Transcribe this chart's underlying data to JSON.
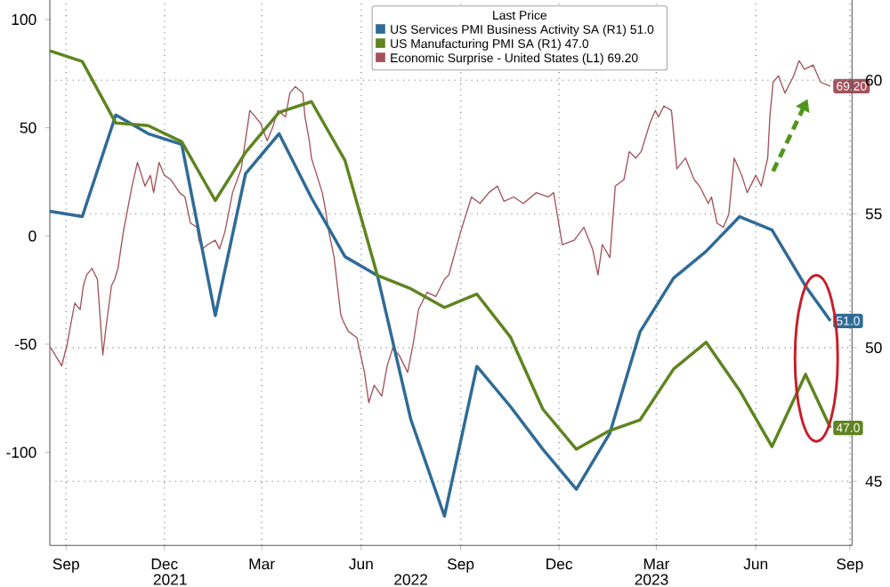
{
  "chart_data": {
    "type": "line",
    "legend_title": "Last Price",
    "legend": "top right",
    "grid": true,
    "xlim": [
      "2021-08-31",
      "2023-09-12"
    ],
    "xticks": [
      {
        "value": "2021-09-15",
        "label": "Sep"
      },
      {
        "value": "2021-12-15",
        "label": "Dec"
      },
      {
        "value": "2022-03-15",
        "label": "Mar"
      },
      {
        "value": "2022-06-15",
        "label": "Jun"
      },
      {
        "value": "2022-09-15",
        "label": "Sep"
      },
      {
        "value": "2022-12-15",
        "label": "Dec"
      },
      {
        "value": "2023-03-15",
        "label": "Mar"
      },
      {
        "value": "2023-06-15",
        "label": "Jun"
      },
      {
        "value": "2023-09-10",
        "label": "Sep"
      }
    ],
    "ylim": [
      -143,
      109
    ],
    "yticks": [
      -100,
      -50,
      0,
      50,
      100
    ],
    "y2lim": [
      42.6,
      63
    ],
    "y2ticks": [
      45,
      50,
      55,
      60
    ],
    "annotations": [
      "2021",
      "2022",
      "2023"
    ],
    "series": [
      {
        "name": "US Services PMI Business Activity SA (R1) 51.0",
        "color": "#2f6b96",
        "axis": "y2",
        "x": [
          "2021-08-31",
          "2021-09-30",
          "2021-10-31",
          "2021-11-30",
          "2021-12-31",
          "2022-01-31",
          "2022-02-28",
          "2022-03-31",
          "2022-04-30",
          "2022-05-31",
          "2022-06-30",
          "2022-07-31",
          "2022-08-31",
          "2022-09-30",
          "2022-10-31",
          "2022-11-30",
          "2022-12-31",
          "2023-01-31",
          "2023-02-28",
          "2023-03-31",
          "2023-04-30",
          "2023-05-31",
          "2023-06-30",
          "2023-07-31",
          "2023-08-23"
        ],
        "values": [
          55.1,
          54.9,
          58.7,
          58.0,
          57.6,
          51.2,
          56.5,
          58.0,
          55.6,
          53.4,
          52.7,
          47.3,
          43.7,
          49.3,
          47.8,
          46.2,
          44.7,
          46.8,
          50.6,
          52.6,
          53.6,
          54.9,
          54.4,
          52.3,
          51.0
        ],
        "value_labels": [
          null,
          null,
          null,
          null,
          null,
          null,
          null,
          null,
          null,
          null,
          null,
          null,
          null,
          null,
          null,
          null,
          null,
          null,
          null,
          null,
          null,
          null,
          null,
          null,
          "51.0"
        ]
      },
      {
        "name": "US Manufacturing PMI SA (R1) 47.0",
        "color": "#5f8420",
        "axis": "y2",
        "x": [
          "2021-08-31",
          "2021-09-30",
          "2021-10-31",
          "2021-11-30",
          "2021-12-31",
          "2022-01-31",
          "2022-02-28",
          "2022-03-31",
          "2022-04-30",
          "2022-05-31",
          "2022-06-30",
          "2022-07-31",
          "2022-08-31",
          "2022-09-30",
          "2022-10-31",
          "2022-11-30",
          "2022-12-31",
          "2023-01-31",
          "2023-02-28",
          "2023-03-31",
          "2023-04-30",
          "2023-05-31",
          "2023-06-30",
          "2023-07-31",
          "2023-08-23"
        ],
        "values": [
          61.1,
          60.7,
          58.4,
          58.3,
          57.7,
          55.5,
          57.3,
          58.8,
          59.2,
          57.0,
          52.7,
          52.2,
          51.5,
          52.0,
          50.4,
          47.7,
          46.2,
          46.9,
          47.3,
          49.2,
          50.2,
          48.4,
          46.3,
          49.0,
          47.0
        ],
        "value_labels": [
          null,
          null,
          null,
          null,
          null,
          null,
          null,
          null,
          null,
          null,
          null,
          null,
          null,
          null,
          null,
          null,
          null,
          null,
          null,
          null,
          null,
          null,
          null,
          null,
          "47.0"
        ]
      },
      {
        "name": "Economic Surprise - United States (L1) 69.20",
        "color": "#a2525c",
        "axis": "y",
        "x": [
          "2021-08-31",
          "2021-09-11",
          "2021-09-16",
          "2021-09-23",
          "2021-09-28",
          "2021-10-01",
          "2021-10-04",
          "2021-10-09",
          "2021-10-14",
          "2021-10-19",
          "2021-10-22",
          "2021-10-27",
          "2021-10-30",
          "2021-11-02",
          "2021-11-07",
          "2021-11-15",
          "2021-11-20",
          "2021-11-27",
          "2021-12-02",
          "2021-12-05",
          "2021-12-10",
          "2021-12-15",
          "2021-12-21",
          "2021-12-29",
          "2022-01-03",
          "2022-01-08",
          "2022-01-14",
          "2022-01-16",
          "2022-01-19",
          "2022-01-24",
          "2022-01-31",
          "2022-02-04",
          "2022-02-09",
          "2022-02-16",
          "2022-02-24",
          "2022-03-04",
          "2022-03-09",
          "2022-03-14",
          "2022-03-20",
          "2022-03-25",
          "2022-03-30",
          "2022-04-06",
          "2022-04-10",
          "2022-04-15",
          "2022-04-22",
          "2022-04-24",
          "2022-04-28",
          "2022-04-30",
          "2022-05-05",
          "2022-05-10",
          "2022-05-13",
          "2022-05-16",
          "2022-05-21",
          "2022-05-24",
          "2022-05-27",
          "2022-05-29",
          "2022-06-03",
          "2022-06-11",
          "2022-06-18",
          "2022-06-22",
          "2022-06-27",
          "2022-07-04",
          "2022-07-09",
          "2022-07-14",
          "2022-07-20",
          "2022-07-28",
          "2022-08-02",
          "2022-08-07",
          "2022-08-15",
          "2022-08-23",
          "2022-08-31",
          "2022-09-04",
          "2022-09-15",
          "2022-09-25",
          "2022-10-03",
          "2022-10-11",
          "2022-10-19",
          "2022-10-25",
          "2022-11-03",
          "2022-11-12",
          "2022-11-24",
          "2022-12-05",
          "2022-12-10",
          "2022-12-18",
          "2022-12-29",
          "2023-01-07",
          "2023-01-15",
          "2023-01-20",
          "2023-01-24",
          "2023-01-31",
          "2023-02-05",
          "2023-02-13",
          "2023-02-18",
          "2023-02-24",
          "2023-03-01",
          "2023-03-09",
          "2023-03-14",
          "2023-03-17",
          "2023-03-22",
          "2023-03-29",
          "2023-04-03",
          "2023-04-11",
          "2023-04-19",
          "2023-04-24",
          "2023-05-02",
          "2023-05-05",
          "2023-05-10",
          "2023-05-16",
          "2023-05-21",
          "2023-05-26",
          "2023-06-02",
          "2023-06-07",
          "2023-06-15",
          "2023-06-20",
          "2023-06-26",
          "2023-06-28",
          "2023-07-01",
          "2023-07-06",
          "2023-07-12",
          "2023-07-20",
          "2023-07-25",
          "2023-07-30",
          "2023-08-07",
          "2023-08-14",
          "2023-08-23"
        ],
        "values": [
          -51,
          -60,
          -50,
          -31,
          -34,
          -23,
          -18,
          -15,
          -20,
          -55,
          -42,
          -23,
          -20,
          -15,
          2,
          23,
          34,
          23,
          28,
          20,
          34,
          28,
          26,
          20,
          18,
          6,
          4,
          -2,
          -6,
          -4,
          -2,
          -6,
          2,
          20,
          31,
          58,
          55,
          52,
          44,
          50,
          58,
          55,
          66,
          69,
          66,
          55,
          44,
          36,
          28,
          20,
          12,
          2,
          -10,
          -23,
          -36,
          -39,
          -44,
          -47,
          -63,
          -77,
          -69,
          -74,
          -60,
          -52,
          -55,
          -63,
          -50,
          -34,
          -26,
          -28,
          -20,
          -18,
          2,
          18,
          15,
          20,
          23,
          16,
          18,
          15,
          20,
          18,
          20,
          -4,
          -2,
          4,
          -6,
          -18,
          -4,
          -10,
          23,
          26,
          39,
          36,
          39,
          52,
          58,
          55,
          60,
          58,
          31,
          36,
          26,
          23,
          15,
          18,
          6,
          4,
          10,
          36,
          28,
          20,
          28,
          23,
          36,
          55,
          71,
          74,
          66,
          74,
          81,
          77,
          79,
          71,
          69.2
        ],
        "value_labels": [
          null,
          null,
          null,
          null,
          null,
          null,
          null,
          null,
          null,
          null,
          null,
          null,
          null,
          null,
          null,
          null,
          null,
          null,
          null,
          null,
          null,
          null,
          null,
          null,
          null,
          null,
          null,
          null,
          null,
          null,
          null,
          null,
          null,
          null,
          null,
          null,
          null,
          null,
          null,
          null,
          null,
          null,
          null,
          null,
          null,
          null,
          null,
          null,
          null,
          null,
          null,
          null,
          null,
          null,
          null,
          null,
          null,
          null,
          null,
          null,
          null,
          null,
          null,
          null,
          null,
          null,
          null,
          null,
          null,
          null,
          null,
          null,
          null,
          null,
          null,
          null,
          null,
          null,
          null,
          null,
          null,
          null,
          null,
          null,
          null,
          null,
          null,
          null,
          null,
          null,
          null,
          null,
          null,
          null,
          null,
          null,
          null,
          null,
          null,
          null,
          null,
          null,
          null,
          null,
          null,
          null,
          null,
          null,
          null,
          null,
          null,
          null,
          null,
          null,
          null,
          null,
          null,
          null,
          null,
          null,
          null,
          null,
          null,
          null,
          "69.20"
        ]
      }
    ]
  }
}
